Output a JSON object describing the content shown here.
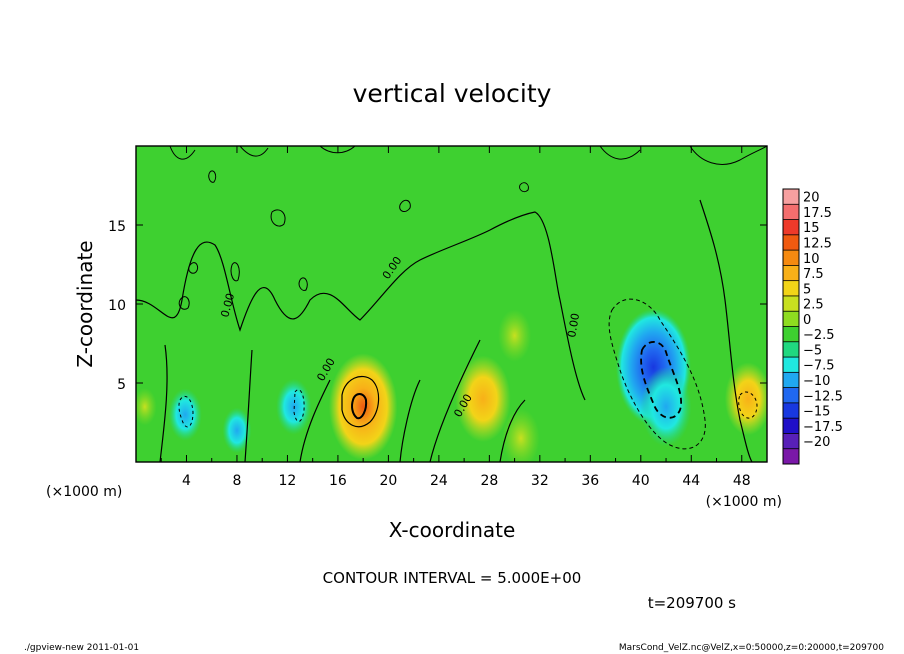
{
  "chart_data": {
    "type": "heatmap",
    "title": "vertical velocity",
    "xlabel": "X-coordinate",
    "ylabel": "Z-coordinate",
    "x_unit": "(×1000 m)",
    "y_unit": "(×1000 m)",
    "xlim": [
      0,
      50
    ],
    "ylim": [
      0,
      20
    ],
    "x_ticks": [
      4,
      8,
      12,
      16,
      20,
      24,
      28,
      32,
      36,
      40,
      44,
      48
    ],
    "y_ticks": [
      5,
      10,
      15
    ],
    "colorbar": {
      "labels": [
        "20",
        "17.5",
        "15",
        "12.5",
        "10",
        "7.5",
        "5",
        "2.5",
        "0",
        "−2.5",
        "−5",
        "−7.5",
        "−10",
        "−12.5",
        "−15",
        "−17.5",
        "−20"
      ],
      "colors": [
        "#f7a0a0",
        "#f46e6e",
        "#ee3a2a",
        "#f05a10",
        "#f58a10",
        "#f8b018",
        "#f2d418",
        "#c8e020",
        "#8edc20",
        "#3ed030",
        "#20d880",
        "#20e8e0",
        "#20a8f0",
        "#2068f0",
        "#1838e0",
        "#2010c8",
        "#5820b8",
        "#7a18a8"
      ]
    },
    "features": [
      {
        "x": 0.7,
        "z": 3.5,
        "w": 0.8
      },
      {
        "x": 3.9,
        "z": 3.0,
        "w": -3.0
      },
      {
        "x": 8.0,
        "z": 2.0,
        "w": -2.0
      },
      {
        "x": 12.5,
        "z": 3.5,
        "w": -3.5
      },
      {
        "x": 18.0,
        "z": 3.5,
        "w": 11.0
      },
      {
        "x": 27.5,
        "z": 4.0,
        "w": 8.0
      },
      {
        "x": 30.0,
        "z": 8.0,
        "w": 3.0
      },
      {
        "x": 30.5,
        "z": 1.5,
        "w": 4.0
      },
      {
        "x": 41.0,
        "z": 6.0,
        "w": -12.5
      },
      {
        "x": 42.0,
        "z": 3.5,
        "w": -7.0
      },
      {
        "x": 48.5,
        "z": 4.0,
        "w": 6.0
      }
    ],
    "contour_interval_label": "CONTOUR INTERVAL = 5.000E+00",
    "time_label": "t=209700 s"
  },
  "footer": {
    "left": "./gpview-new 2011-01-01",
    "right": "MarsCond_VelZ.nc@VelZ,x=0:50000,z=0:20000,t=209700"
  }
}
